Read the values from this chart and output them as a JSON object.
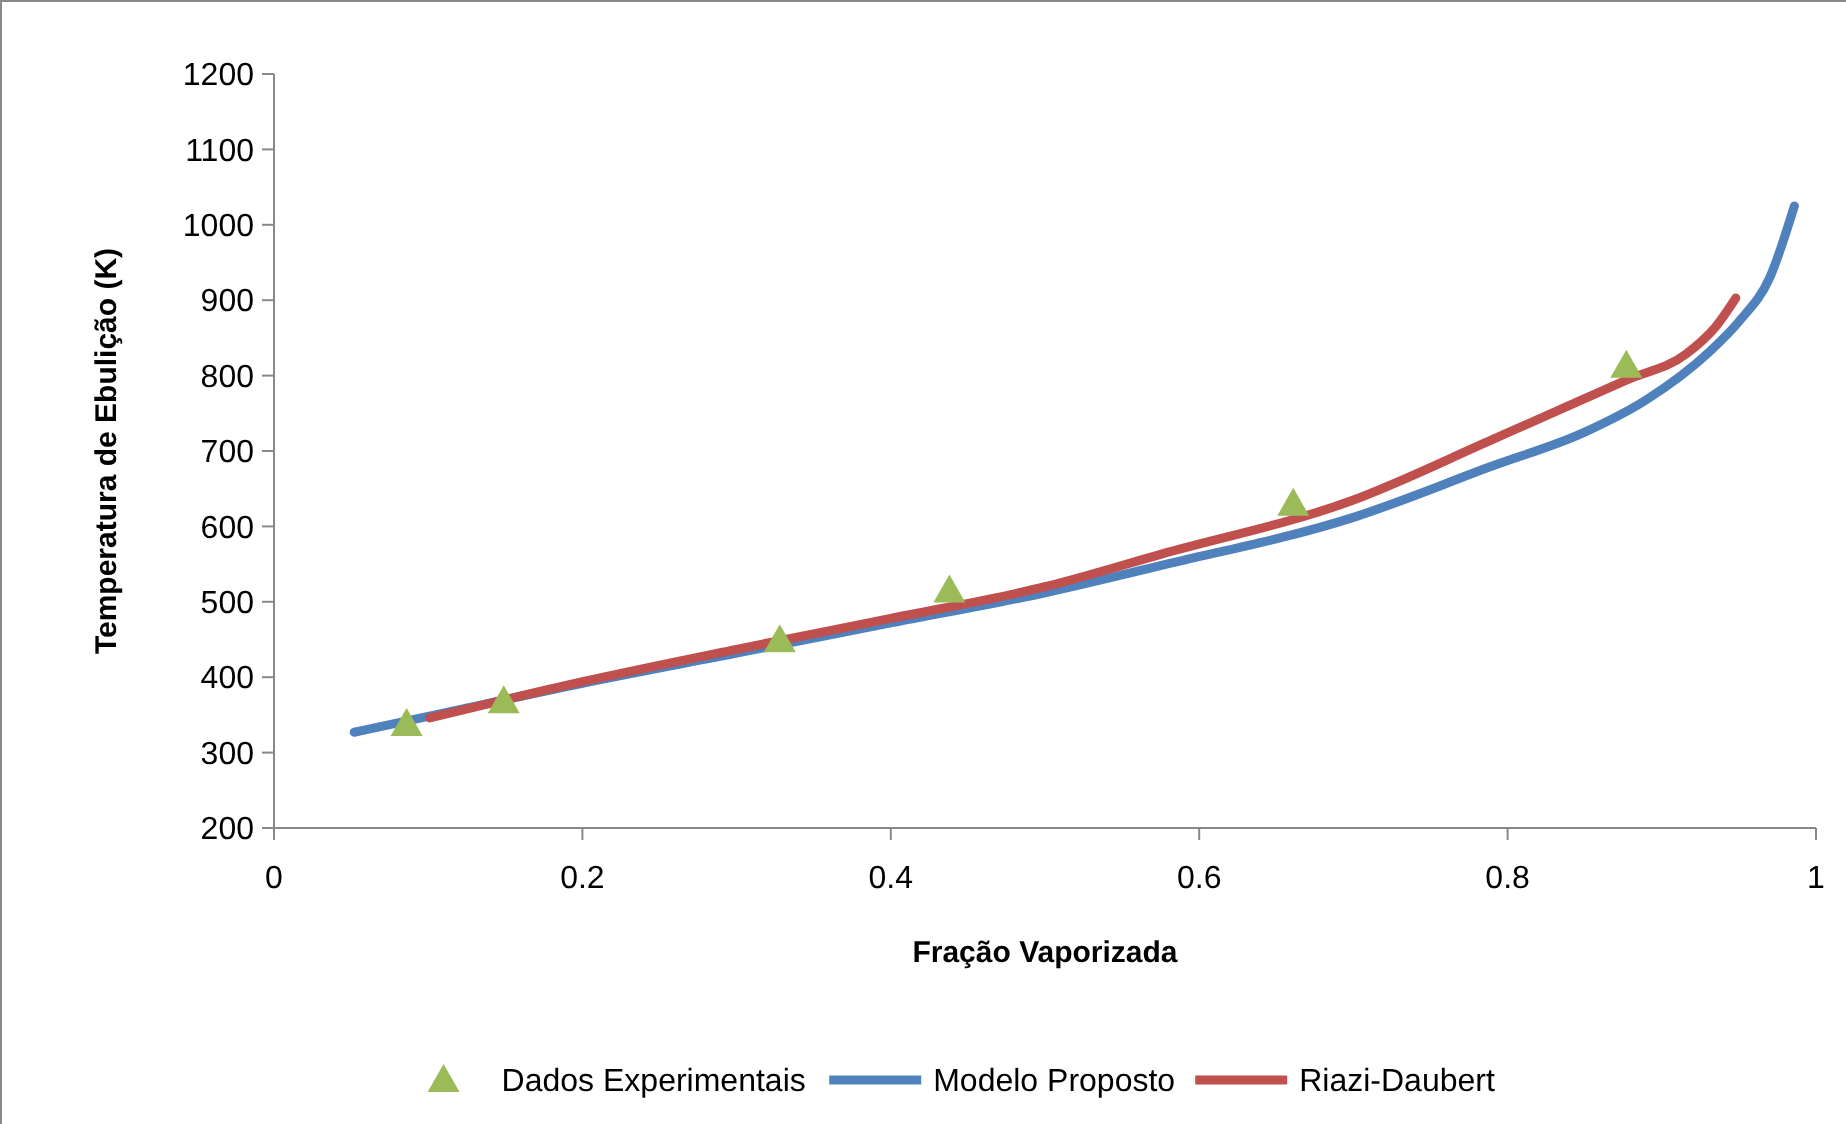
{
  "chart_data": {
    "type": "line",
    "xlabel": "Fração  Vaporizada",
    "ylabel": "Temperatura de Ebulição  (K)",
    "xlim": [
      0,
      1
    ],
    "xticks": [
      0,
      0.2,
      0.4,
      0.6,
      0.8,
      1
    ],
    "ylim": [
      200,
      1200
    ],
    "yticks": [
      200,
      300,
      400,
      500,
      600,
      700,
      800,
      900,
      1000,
      1100,
      1200
    ],
    "grid": false,
    "legend": "bottom",
    "line_style": "solid",
    "series": [
      {
        "name": "Dados Experimentais",
        "type": "scatter",
        "marker": "triangle",
        "color": "#9bbb59",
        "x": [
          0.086,
          0.149,
          0.328,
          0.438,
          0.661,
          0.877
        ],
        "values": [
          338,
          368,
          449,
          515,
          630,
          813
        ]
      },
      {
        "name": "Modelo Proposto",
        "color": "#4f81bd",
        "x": [
          0.052,
          0.1,
          0.2,
          0.3,
          0.4,
          0.5,
          0.575,
          0.7,
          0.79,
          0.85,
          0.89,
          0.93,
          0.951,
          0.97,
          0.986
        ],
        "values": [
          327,
          348,
          392,
          432,
          472,
          512,
          548,
          612,
          680,
          725,
          768,
          830,
          874,
          930,
          1025
        ]
      },
      {
        "name": "Riazi-Daubert",
        "color": "#c0504d",
        "x": [
          0.101,
          0.2,
          0.3,
          0.4,
          0.5,
          0.575,
          0.7,
          0.79,
          0.877,
          0.916,
          0.935,
          0.948
        ],
        "values": [
          346,
          394,
          437,
          478,
          520,
          563,
          635,
          715,
          794,
          829,
          865,
          903
        ]
      }
    ]
  }
}
